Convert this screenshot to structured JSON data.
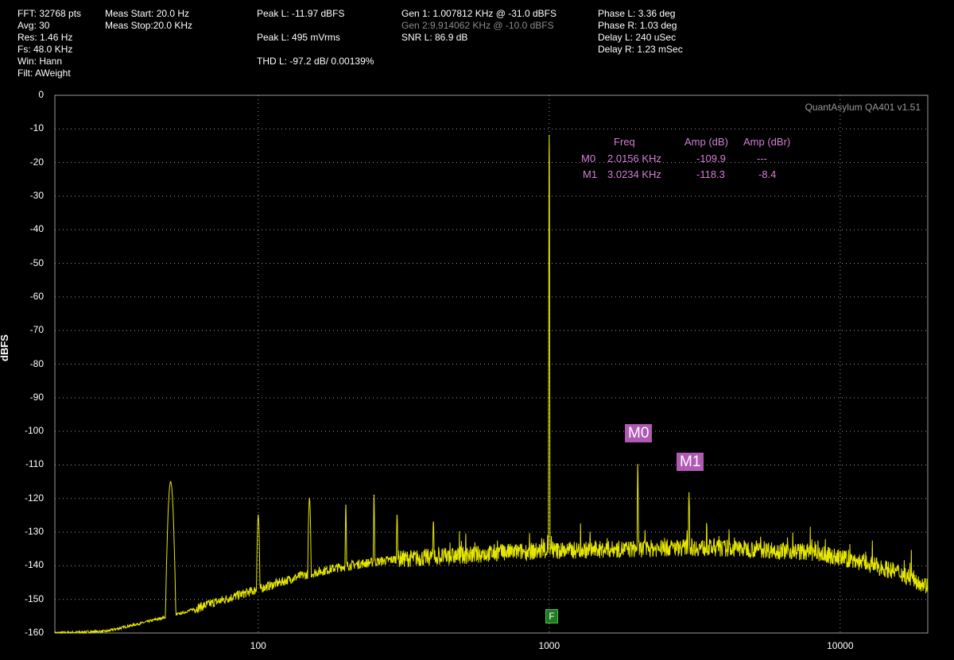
{
  "header": {
    "col1": [
      "FFT: 32768 pts",
      "Avg: 30",
      "Res: 1.46 Hz",
      "Fs: 48.0 KHz",
      "Win: Hann",
      "Filt: AWeight"
    ],
    "col2": [
      "Meas Start: 20.0 Hz",
      "Meas Stop:20.0 KHz"
    ],
    "peak_l_dbfs": "Peak L: -11.97 dBFS",
    "peak_l_mvrms": "Peak L: 495 mVrms",
    "thd_l": "THD L: -97.2 dB/ 0.00139%",
    "gen1": "Gen 1: 1.007812 KHz @ -31.0  dBFS",
    "gen2": "Gen 2:9.914062 KHz @ -10.0  dBFS",
    "snr_l": "SNR L: 86.9 dB",
    "col5": [
      "Phase L: 3.36 deg",
      "Phase R: 1.03 deg",
      "Delay L: 240 uSec",
      "Delay R: 1.23 mSec"
    ]
  },
  "watermark": "QuantAsylum QA401 v1.51",
  "marker_table": {
    "headers": {
      "freq": "Freq",
      "amp_db": "Amp (dB)",
      "amp_dbr": "Amp (dBr)"
    },
    "rows": [
      {
        "name": "M0",
        "freq": "2.0156 KHz",
        "amp_db": "-109.9",
        "amp_dbr": "---"
      },
      {
        "name": "M1",
        "freq": "3.0234 KHz",
        "amp_db": "-118.3",
        "amp_dbr": "-8.4"
      }
    ]
  },
  "markers": [
    {
      "label": "M0",
      "freq": 2015.6,
      "amp": -109.9
    },
    {
      "label": "M1",
      "freq": 3023.4,
      "amp": -118.3
    }
  ],
  "freq_marker_label": "F",
  "colors": {
    "trace": "#e6e600",
    "marker": "#b05ab4",
    "marker_text": "#d27fd6",
    "grid": "#9a9a9a",
    "f_marker": "#1f7a1f"
  },
  "chart_data": {
    "type": "line",
    "title": "",
    "xlabel": "",
    "ylabel": "dBFS",
    "xscale": "log",
    "xlim": [
      20,
      20000
    ],
    "ylim": [
      -160,
      0
    ],
    "xticks": [
      {
        "value": 100,
        "label": "100"
      },
      {
        "value": 1000,
        "label": "1000"
      },
      {
        "value": 10000,
        "label": "10000"
      }
    ],
    "yticks": [
      0,
      -10,
      -20,
      -30,
      -40,
      -50,
      -60,
      -70,
      -80,
      -90,
      -100,
      -110,
      -120,
      -130,
      -140,
      -150,
      -160
    ],
    "grid": true,
    "noise_floor": [
      [
        20,
        -160
      ],
      [
        30,
        -159.5
      ],
      [
        40,
        -157
      ],
      [
        55,
        -154
      ],
      [
        70,
        -151
      ],
      [
        100,
        -147
      ],
      [
        140,
        -143
      ],
      [
        200,
        -140
      ],
      [
        300,
        -138
      ],
      [
        500,
        -137
      ],
      [
        700,
        -136
      ],
      [
        1000,
        -135.5
      ],
      [
        2000,
        -135
      ],
      [
        3000,
        -134.5
      ],
      [
        5000,
        -135
      ],
      [
        8000,
        -136
      ],
      [
        12000,
        -139
      ],
      [
        16000,
        -142
      ],
      [
        20000,
        -146
      ]
    ],
    "peaks": [
      {
        "x": 50,
        "y": -115
      },
      {
        "x": 100,
        "y": -125
      },
      {
        "x": 150,
        "y": -120
      },
      {
        "x": 200,
        "y": -122
      },
      {
        "x": 250,
        "y": -119
      },
      {
        "x": 300,
        "y": -125
      },
      {
        "x": 400,
        "y": -127
      },
      {
        "x": 1000,
        "y": -12
      },
      {
        "x": 2015.6,
        "y": -109.9
      },
      {
        "x": 3023.4,
        "y": -118.3
      }
    ]
  }
}
